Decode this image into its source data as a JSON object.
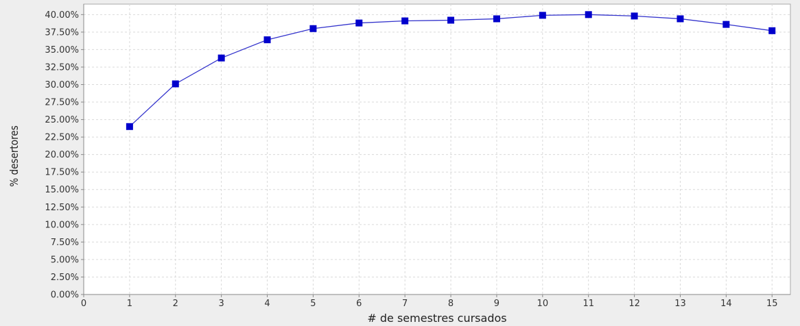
{
  "chart_data": {
    "type": "line",
    "title": "",
    "xlabel": "# de semestres cursados",
    "ylabel": "% desertores",
    "x": [
      1,
      2,
      3,
      4,
      5,
      6,
      7,
      8,
      9,
      10,
      11,
      12,
      13,
      14,
      15
    ],
    "series": [
      {
        "values": [
          24.0,
          30.1,
          33.8,
          36.4,
          38.0,
          38.8,
          39.1,
          39.2,
          39.4,
          39.9,
          40.0,
          39.8,
          39.4,
          38.6,
          37.7
        ]
      }
    ],
    "xlim": [
      0,
      15.4
    ],
    "ylim": [
      0,
      41.5
    ],
    "x_ticks": [
      0,
      1,
      2,
      3,
      4,
      5,
      6,
      7,
      8,
      9,
      10,
      11,
      12,
      13,
      14,
      15
    ],
    "x_tick_labels": [
      "0",
      "1",
      "2",
      "3",
      "4",
      "5",
      "6",
      "7",
      "8",
      "9",
      "10",
      "11",
      "12",
      "13",
      "14",
      "15"
    ],
    "y_ticks": [
      0,
      2.5,
      5,
      7.5,
      10,
      12.5,
      15,
      17.5,
      20,
      22.5,
      25,
      27.5,
      30,
      32.5,
      35,
      37.5,
      40
    ],
    "y_tick_labels": [
      "0.00%",
      "2.50%",
      "5.00%",
      "7.50%",
      "10.00%",
      "12.50%",
      "15.00%",
      "17.50%",
      "20.00%",
      "22.50%",
      "25.00%",
      "27.50%",
      "30.00%",
      "32.50%",
      "35.00%",
      "37.50%",
      "40.00%"
    ],
    "grid": true,
    "legend": false,
    "colors": {
      "line": "#3333cc",
      "marker": "#0000cc",
      "plot_background": "#ffffff",
      "outer_background": "#eeeeee",
      "grid": "#d9d9d9"
    }
  }
}
